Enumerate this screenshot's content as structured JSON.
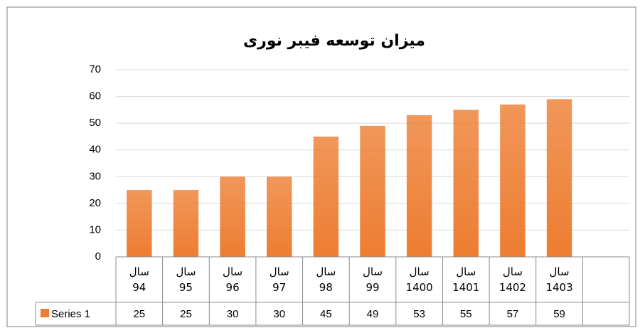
{
  "chart_data": {
    "type": "bar",
    "title": "میزان توسعه فیبر نوری",
    "categories": [
      "سال 94",
      "سال 95",
      "سال 96",
      "سال 97",
      "سال 98",
      "سال 99",
      "سال 1400",
      "سال 1401",
      "سال 1402",
      "سال 1403",
      null
    ],
    "series": [
      {
        "name": "Series 1",
        "color": "#ed7d31",
        "values": [
          25,
          25,
          30,
          30,
          45,
          49,
          53,
          55,
          57,
          59,
          null
        ]
      }
    ],
    "ylim": [
      0,
      70
    ],
    "yticks": [
      0,
      10,
      20,
      30,
      40,
      50,
      60,
      70
    ],
    "grid": true,
    "data_table": true
  }
}
